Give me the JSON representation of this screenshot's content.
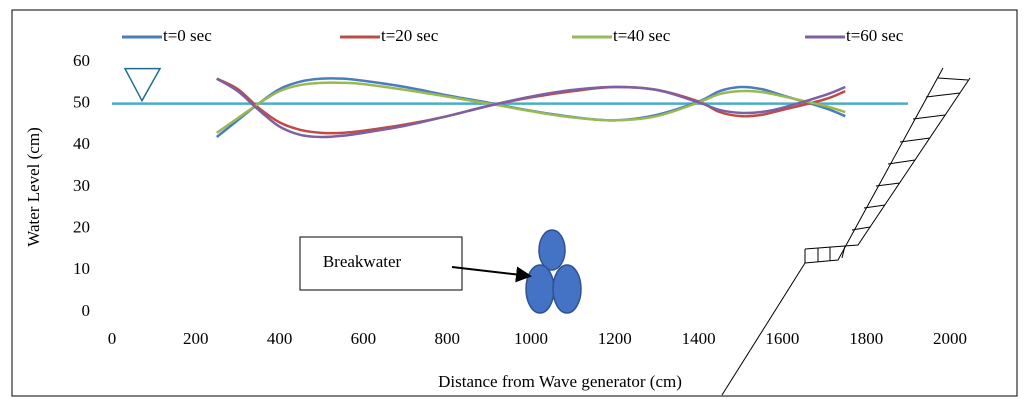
{
  "chart_data": {
    "type": "line",
    "x_label": "Distance from Wave generator (cm)",
    "y_label": "Water Level  (cm)",
    "annotation": "Breakwater",
    "xlim": [
      0,
      2000
    ],
    "xticks": [
      0,
      200,
      400,
      600,
      800,
      1000,
      1200,
      1400,
      1600,
      1800,
      2000
    ],
    "ylim": [
      0,
      60
    ],
    "yticks": [
      0,
      10,
      20,
      30,
      40,
      50,
      60
    ],
    "grid": false,
    "legend": "top",
    "reference_line": {
      "y": 50,
      "x": [
        0,
        1900
      ],
      "color": "#4bacc6"
    },
    "x": [
      250,
      300,
      350,
      400,
      450,
      500,
      550,
      600,
      700,
      800,
      900,
      1000,
      1100,
      1200,
      1300,
      1400,
      1450,
      1500,
      1550,
      1600,
      1700,
      1750
    ],
    "series": [
      {
        "name": "t=0 sec",
        "color": "#4a7ebb",
        "values": [
          42,
          46,
          50,
          53.5,
          55.3,
          56,
          56,
          55.5,
          54,
          52,
          50.2,
          48.3,
          46.8,
          46,
          47.3,
          50.5,
          53,
          54,
          53.5,
          52,
          49,
          47
        ]
      },
      {
        "name": "t=20 sec",
        "color": "#be4b48",
        "values": [
          56,
          53.5,
          49,
          45.5,
          43.7,
          43,
          43,
          43.5,
          45,
          47,
          49.5,
          51.5,
          53,
          54,
          53.3,
          50.5,
          48,
          47,
          47.3,
          48.5,
          51,
          53
        ]
      },
      {
        "name": "t=40 sec",
        "color": "#98b954",
        "values": [
          43,
          46.5,
          50,
          53,
          54.5,
          55,
          55,
          54.7,
          53.3,
          51.7,
          50,
          48.2,
          46.7,
          46,
          47,
          50.3,
          52.3,
          53,
          52.8,
          51.8,
          49.5,
          48
        ]
      },
      {
        "name": "t=60 sec",
        "color": "#7d60a0",
        "values": [
          56,
          53,
          48.5,
          44.5,
          42.5,
          42,
          42.3,
          43,
          44.7,
          47,
          49.5,
          51.7,
          53.3,
          54,
          53.3,
          50.3,
          48.5,
          47.8,
          48,
          49,
          52,
          54
        ]
      }
    ]
  }
}
